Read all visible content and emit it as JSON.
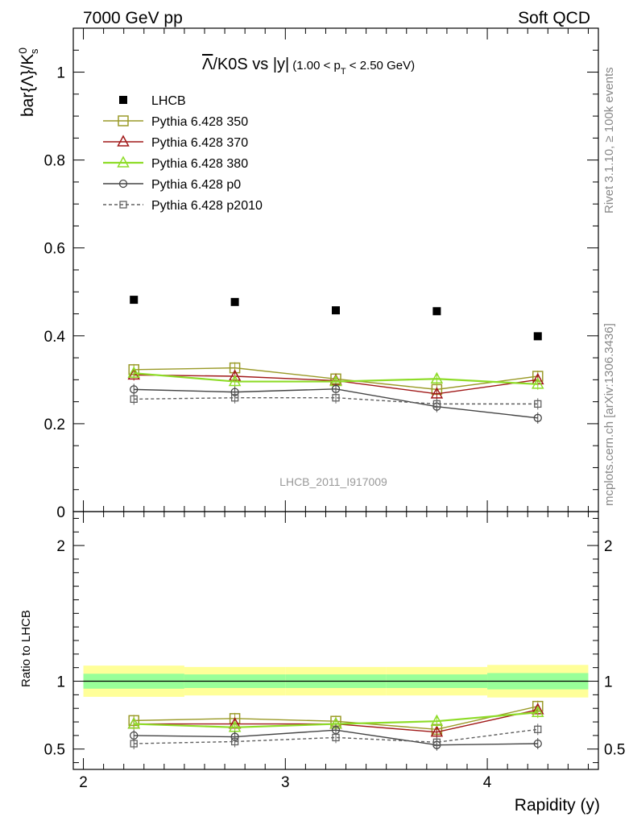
{
  "header": {
    "left": "7000 GeV pp",
    "right": "Soft QCD"
  },
  "title": {
    "main_bar": "Λ",
    "main_rest": "/K0S vs |y|",
    "cut_open": "(1.00 < p",
    "cut_sub": "T",
    "cut_close": " < 2.50 GeV)"
  },
  "side_labels": {
    "rivet": "Rivet 3.1.10, ≥ 100k events",
    "source": "mcplots.cern.ch [arXiv:1306.3436]"
  },
  "analysis_id": "LHCB_2011_I917009",
  "colors": {
    "lhcb": "#000000",
    "p350": "#9a9a28",
    "p370": "#a01818",
    "p380": "#8edc28",
    "p0": "#454545",
    "p2010": "#606060",
    "band_outer": "#ffff99",
    "band_inner": "#99ff99"
  },
  "chart_data": [
    {
      "type": "scatter",
      "ylabel": "bar{Λ}/K",
      "ylabel_sup": "0",
      "ylabel_sub": "s",
      "xlim": [
        1.95,
        4.55
      ],
      "ylim": [
        0,
        1.1
      ],
      "yticks": [
        0,
        0.2,
        0.4,
        0.6,
        0.8,
        1
      ],
      "ytick_labels": [
        "0",
        "0.2",
        "0.4",
        "0.6",
        "0.8",
        "1"
      ],
      "x": [
        2.25,
        2.75,
        3.25,
        3.75,
        4.25
      ],
      "series": [
        {
          "name": "LHCB",
          "key": "lhcb",
          "style": "data",
          "values": [
            0.482,
            0.477,
            0.458,
            0.456,
            0.399
          ]
        },
        {
          "name": "Pythia 6.428 350",
          "key": "p350",
          "style": "line",
          "marker": "square",
          "values": [
            0.323,
            0.327,
            0.302,
            0.278,
            0.308
          ]
        },
        {
          "name": "Pythia 6.428 370",
          "key": "p370",
          "style": "line",
          "marker": "triangle",
          "values": [
            0.311,
            0.308,
            0.298,
            0.268,
            0.3
          ]
        },
        {
          "name": "Pythia 6.428 380",
          "key": "p380",
          "style": "line",
          "marker": "triangle",
          "values": [
            0.315,
            0.296,
            0.296,
            0.302,
            0.29
          ]
        },
        {
          "name": "Pythia 6.428 p0",
          "key": "p0",
          "style": "line",
          "marker": "circle",
          "values": [
            0.278,
            0.272,
            0.279,
            0.239,
            0.213
          ]
        },
        {
          "name": "Pythia 6.428 p2010",
          "key": "p2010",
          "style": "dashed",
          "marker": "square-small",
          "values": [
            0.256,
            0.259,
            0.259,
            0.245,
            0.245
          ]
        }
      ],
      "grid": false,
      "legend": "top-left"
    },
    {
      "type": "line",
      "xlabel": "Rapidity (y)",
      "ylabel": "Ratio to LHCB",
      "xlim": [
        1.95,
        4.55
      ],
      "ylim": [
        0.35,
        2.25
      ],
      "xticks": [
        2,
        3,
        4
      ],
      "xtick_labels": [
        "2",
        "3",
        "4"
      ],
      "yticks": [
        0.5,
        1,
        2
      ],
      "ytick_labels": [
        "0.5",
        "1",
        "2"
      ],
      "x": [
        2.25,
        2.75,
        3.25,
        3.75,
        4.25
      ],
      "bins": [
        [
          2.0,
          2.5
        ],
        [
          2.5,
          3.0
        ],
        [
          3.0,
          3.5
        ],
        [
          3.5,
          4.0
        ],
        [
          4.0,
          4.5
        ]
      ],
      "band_outer": [
        0.115,
        0.105,
        0.105,
        0.105,
        0.12
      ],
      "band_inner": [
        0.055,
        0.05,
        0.05,
        0.05,
        0.06
      ],
      "series": [
        {
          "name": "Pythia 6.428 350",
          "key": "p350",
          "style": "line",
          "marker": "square",
          "values": [
            0.71,
            0.725,
            0.705,
            0.645,
            0.815
          ]
        },
        {
          "name": "Pythia 6.428 370",
          "key": "p370",
          "style": "line",
          "marker": "triangle",
          "values": [
            0.685,
            0.685,
            0.685,
            0.625,
            0.79
          ]
        },
        {
          "name": "Pythia 6.428 380",
          "key": "p380",
          "style": "line",
          "marker": "triangle",
          "values": [
            0.685,
            0.66,
            0.685,
            0.705,
            0.77
          ]
        },
        {
          "name": "Pythia 6.428 p0",
          "key": "p0",
          "style": "line",
          "marker": "circle",
          "values": [
            0.6,
            0.59,
            0.64,
            0.53,
            0.54
          ]
        },
        {
          "name": "Pythia 6.428 p2010",
          "key": "p2010",
          "style": "dashed",
          "marker": "square-small",
          "values": [
            0.54,
            0.555,
            0.585,
            0.55,
            0.645
          ]
        }
      ],
      "grid": false
    }
  ]
}
